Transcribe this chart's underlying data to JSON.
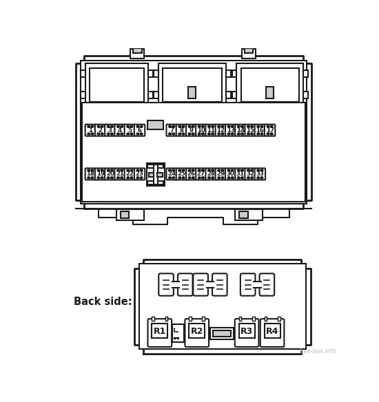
{
  "bg_color": "#ffffff",
  "line_color": "#1a1a1a",
  "line_width": 1.5,
  "thick_lw": 2.0,
  "fill_color": "#ffffff",
  "gray_fill": "#cccccc",
  "dark_fill": "#555555",
  "fuse_row1_left": [
    1,
    2,
    3,
    4,
    5,
    6
  ],
  "fuse_row1_right": [
    7,
    8,
    9,
    10,
    11,
    12,
    13,
    14,
    15,
    16,
    17
  ],
  "fuse_row2_left": [
    18,
    19,
    20,
    21,
    22,
    23
  ],
  "fuse_row2_right": [
    24,
    25,
    26,
    27,
    28,
    29,
    30,
    31,
    32,
    33
  ],
  "relay_labels": [
    "R1",
    "R2",
    "R3",
    "R4"
  ],
  "backside_label": "Back side:",
  "watermark": "free-box.info"
}
